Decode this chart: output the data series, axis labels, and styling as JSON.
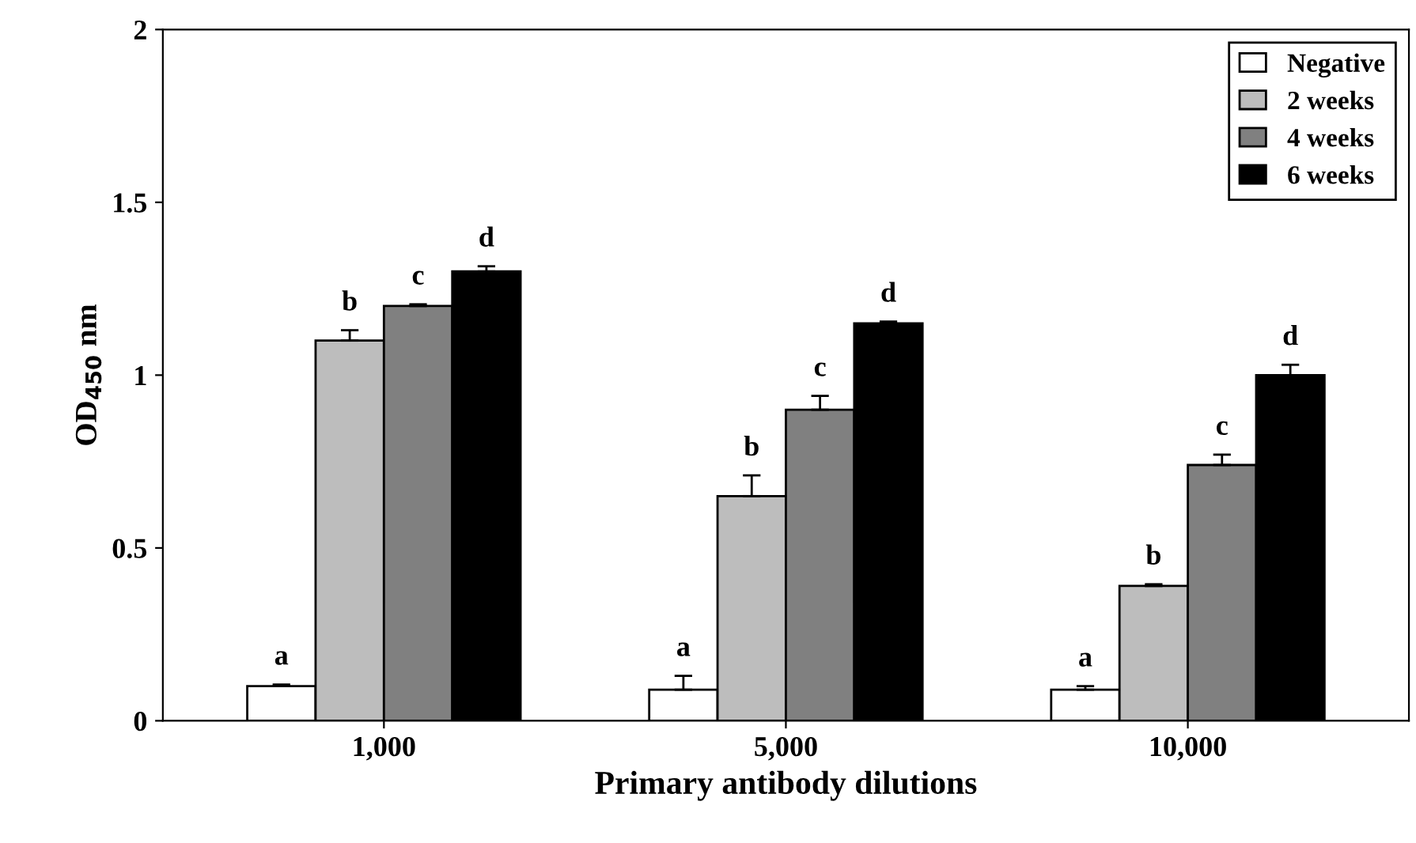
{
  "chart_data": {
    "type": "bar",
    "xlabel": "Primary antibody dilutions",
    "ylabel": "OD$_{450}$ nm",
    "categories": [
      "1,000",
      "5,000",
      "10,000"
    ],
    "series": [
      {
        "name": "Negative",
        "color": "#ffffff",
        "values": [
          0.1,
          0.09,
          0.09
        ],
        "errors": [
          0.005,
          0.04,
          0.01
        ],
        "value_labels": [
          "a",
          "a",
          "a"
        ]
      },
      {
        "name": "2 weeks",
        "color": "#bdbdbd",
        "values": [
          1.1,
          0.65,
          0.39
        ],
        "errors": [
          0.03,
          0.06,
          0.005
        ],
        "value_labels": [
          "b",
          "b",
          "b"
        ]
      },
      {
        "name": "4 weeks",
        "color": "#808080",
        "values": [
          1.2,
          0.9,
          0.74
        ],
        "errors": [
          0.005,
          0.04,
          0.03
        ],
        "value_labels": [
          "c",
          "c",
          "c"
        ]
      },
      {
        "name": "6 weeks",
        "color": "#000000",
        "values": [
          1.3,
          1.15,
          1.0
        ],
        "errors": [
          0.015,
          0.005,
          0.03
        ],
        "value_labels": [
          "d",
          "d",
          "d"
        ]
      }
    ],
    "ylim": [
      0,
      2
    ],
    "yticks": [
      0,
      0.5,
      1,
      1.5,
      2
    ],
    "grid": false,
    "legend": "top right"
  }
}
